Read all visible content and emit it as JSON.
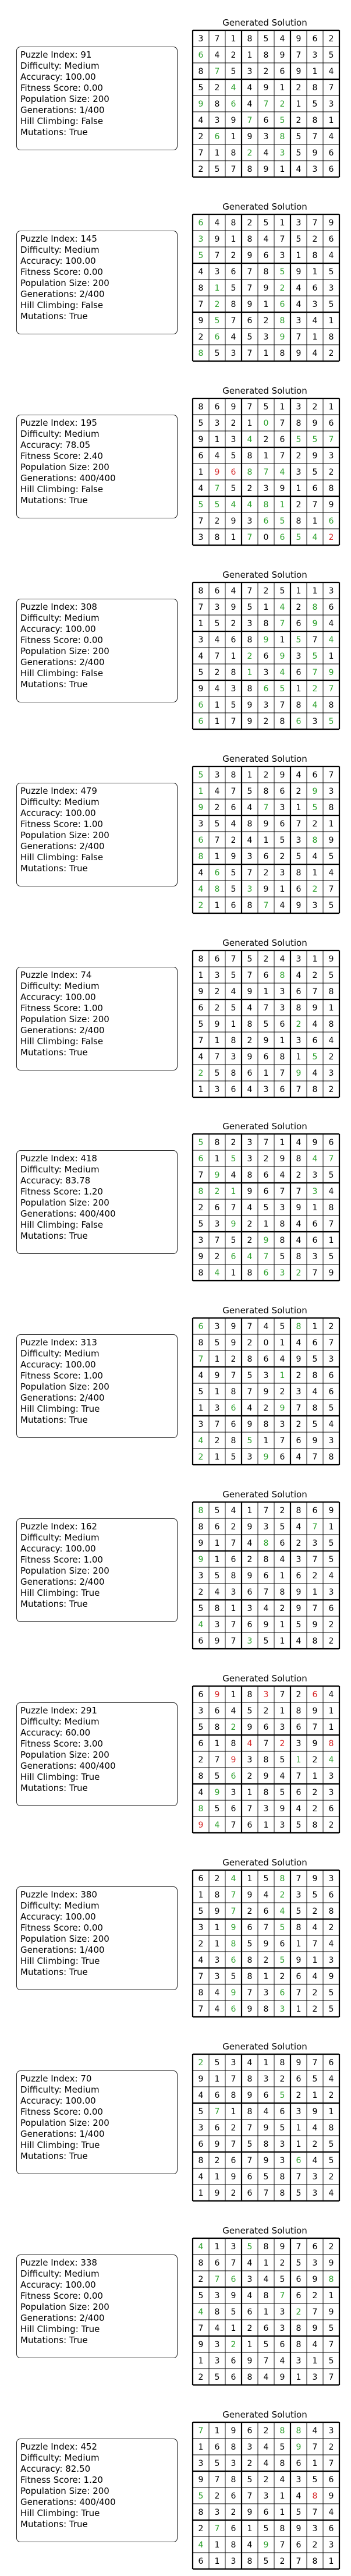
{
  "colors": {
    "fixed": "#000000",
    "correct": "#2ca02c",
    "wrong": "#d62728",
    "grid": "#000000"
  },
  "panels": [
    {
      "title": "Generated Solution",
      "info": [
        "Puzzle Index: 91",
        "Difficulty: Medium",
        "Accuracy: 100.00",
        "Fitness Score: 0.00",
        "Population Size: 200",
        "Generations: 1/400",
        "Hill Climbing: False",
        "Mutations: True"
      ],
      "grid": [
        "371854962",
        "642189735",
        "875326914",
        "524491287",
        "986472153",
        "439765281",
        "261938574",
        "718243596",
        "257891436"
      ],
      "colors": [
        "000000000",
        "C00000000",
        "0C0000000",
        "00C000000",
        "C0C0CC000",
        "000C0C000",
        "0C000C000",
        "000C0C000",
        "000000000"
      ]
    },
    {
      "title": "Generated Solution",
      "info": [
        "Puzzle Index: 145",
        "Difficulty: Medium",
        "Accuracy: 100.00",
        "Fitness Score: 0.00",
        "Population Size: 200",
        "Generations: 2/400",
        "Hill Climbing: False",
        "Mutations: True"
      ],
      "grid": [
        "648251379",
        "391847526",
        "572963184",
        "436785915",
        "815792463",
        "728916435",
        "957628341",
        "264539718",
        "853718942"
      ],
      "colors": [
        "C00000000",
        "C00000000",
        "C00000000",
        "00000C000",
        "0C000C000",
        "0C000C000",
        "0C000C000",
        "0C000C000",
        "C00000000"
      ]
    },
    {
      "title": "Generated Solution",
      "info": [
        "Puzzle Index: 195",
        "Difficulty: Medium",
        "Accuracy: 78.05",
        "Fitness Score: 2.40",
        "Population Size: 200",
        "Generations: 400/400",
        "Hill Climbing: False",
        "Mutations: True"
      ],
      "grid": [
        "869751321",
        "532107896",
        "913426557",
        "645817293",
        "196874352",
        "475239168",
        "554481279",
        "729365816",
        "381706542"
      ],
      "colors": [
        "000000000",
        "0000C0000",
        "000C00CCC",
        "000000000",
        "0WWCCC000",
        "0C0000000",
        "CCCCCC000",
        "0000CC00C",
        "000C0CCCW"
      ]
    },
    {
      "title": "Generated Solution",
      "info": [
        "Puzzle Index: 308",
        "Difficulty: Medium",
        "Accuracy: 100.00",
        "Fitness Score: 0.00",
        "Population Size: 200",
        "Generations: 2/400",
        "Hill Climbing: False",
        "Mutations: True"
      ],
      "grid": [
        "864725113",
        "739514286",
        "152387694",
        "346891574",
        "471269351",
        "528134679",
        "943865127",
        "615937848",
        "617928635"
      ],
      "colors": [
        "000000000",
        "00000C0C0",
        "00000C0C0",
        "0000C0C0C",
        "000C0C0C0",
        "000C0C0CC",
        "0000CC0CC",
        "C000000C0",
        "C00000C0C"
      ]
    },
    {
      "title": "Generated Solution",
      "info": [
        "Puzzle Index: 479",
        "Difficulty: Medium",
        "Accuracy: 100.00",
        "Fitness Score: 1.00",
        "Population Size: 200",
        "Generations: 2/400",
        "Hill Climbing: False",
        "Mutations: True"
      ],
      "grid": [
        "538129467",
        "147586293",
        "926473158",
        "354896721",
        "672415389",
        "819362545",
        "465723814",
        "485391627",
        "216874935"
      ],
      "colors": [
        "C00000000",
        "C000000C0",
        "C000C00C0",
        "000000000",
        "C000000C0",
        "C00000000",
        "0C0000000",
        "CC0C000C0",
        "C000C0000"
      ]
    },
    {
      "title": "Generated Solution",
      "info": [
        "Puzzle Index: 74",
        "Difficulty: Medium",
        "Accuracy: 100.00",
        "Fitness Score: 1.00",
        "Population Size: 200",
        "Generations: 2/400",
        "Hill Climbing: False",
        "Mutations: True"
      ],
      "grid": [
        "867524319",
        "135768425",
        "924913678",
        "625473891",
        "591856248",
        "718291364",
        "473968152",
        "258617943",
        "136436782"
      ],
      "colors": [
        "000000000",
        "00000C000",
        "000000000",
        "000000000",
        "000000C00",
        "000000000",
        "0000000C0",
        "C00000C00",
        "000000000"
      ]
    },
    {
      "title": "Generated Solution",
      "info": [
        "Puzzle Index: 418",
        "Difficulty: Medium",
        "Accuracy: 83.78",
        "Fitness Score: 1.20",
        "Population Size: 200",
        "Generations: 400/400",
        "Hill Climbing: False",
        "Mutations: True"
      ],
      "grid": [
        "582371496",
        "615329847",
        "794864235",
        "821967734",
        "267453918",
        "539218467",
        "375298461",
        "926475835",
        "841863279"
      ],
      "colors": [
        "C00000000",
        "C0C0000CC",
        "0C0000000",
        "CCC0000C0",
        "000000000",
        "00C000000",
        "0000C0000",
        "00CCC0000",
        "0C00CCC00"
      ]
    },
    {
      "title": "Generated Solution",
      "info": [
        "Puzzle Index: 313",
        "Difficulty: Medium",
        "Accuracy: 100.00",
        "Fitness Score: 1.00",
        "Population Size: 200",
        "Generations: 2/400",
        "Hill Climbing: True",
        "Mutations: True"
      ],
      "grid": [
        "639745812",
        "859201467",
        "712864953",
        "497531286",
        "518792346",
        "136429785",
        "376983254",
        "428517693",
        "215396478"
      ],
      "colors": [
        "C00000C00",
        "000000000",
        "C00000000",
        "00000C000",
        "000000000",
        "00C00C000",
        "000000000",
        "C00C00000",
        "C000C0000"
      ]
    },
    {
      "title": "Generated Solution",
      "info": [
        "Puzzle Index: 162",
        "Difficulty: Medium",
        "Accuracy: 100.00",
        "Fitness Score: 1.00",
        "Population Size: 200",
        "Generations: 2/400",
        "Hill Climbing: True",
        "Mutations: True"
      ],
      "grid": [
        "854172869",
        "862935471",
        "917486235",
        "916284375",
        "358961624",
        "243678913",
        "581342976",
        "437691592",
        "697351482"
      ],
      "colors": [
        "C00000000",
        "0000000C0",
        "0000C0000",
        "C00000000",
        "000000000",
        "000000000",
        "000000000",
        "C00000000",
        "000C00000"
      ]
    },
    {
      "title": "Generated Solution",
      "info": [
        "Puzzle Index: 291",
        "Difficulty: Medium",
        "Accuracy: 60.00",
        "Fitness Score: 3.00",
        "Population Size: 200",
        "Generations: 400/400",
        "Hill Climbing: True",
        "Mutations: True"
      ],
      "grid": [
        "691837264",
        "364521891",
        "582963671",
        "618472398",
        "279385124",
        "856294713",
        "493185623",
        "856739426",
        "947613582"
      ],
      "colors": [
        "0W00W00W0",
        "000000000",
        "00C000000",
        "000W0W00W",
        "00W000C0C",
        "00C000000",
        "0C0000000",
        "C00000000",
        "WC0000000"
      ]
    },
    {
      "title": "Generated Solution",
      "info": [
        "Puzzle Index: 380",
        "Difficulty: Medium",
        "Accuracy: 100.00",
        "Fitness Score: 0.00",
        "Population Size: 200",
        "Generations: 1/400",
        "Hill Climbing: True",
        "Mutations: True"
      ],
      "grid": [
        "624158793",
        "187942356",
        "597264528",
        "319675842",
        "218596174",
        "436825913",
        "735812649",
        "849736725",
        "746983125"
      ],
      "colors": [
        "00C00C000",
        "00C00C000",
        "00C00C000",
        "00C00C000",
        "00C000000",
        "00C00C000",
        "000000000",
        "00C00C000",
        "00C00C000"
      ]
    },
    {
      "title": "Generated Solution",
      "info": [
        "Puzzle Index: 70",
        "Difficulty: Medium",
        "Accuracy: 100.00",
        "Fitness Score: 0.00",
        "Population Size: 200",
        "Generations: 1/400",
        "Hill Climbing: True",
        "Mutations: True"
      ],
      "grid": [
        "253418976",
        "917832654",
        "468965212",
        "571846391",
        "362795148",
        "697583125",
        "826793645",
        "419658732",
        "192678534"
      ],
      "colors": [
        "C00000000",
        "000000000",
        "00000C000",
        "0C0000000",
        "000000000",
        "000000000",
        "000000C00",
        "000000000",
        "000000000"
      ]
    },
    {
      "title": "Generated Solution",
      "info": [
        "Puzzle Index: 338",
        "Difficulty: Medium",
        "Accuracy: 100.00",
        "Fitness Score: 0.00",
        "Population Size: 200",
        "Generations: 2/400",
        "Hill Climbing: True",
        "Mutations: True"
      ],
      "grid": [
        "413589762",
        "867412539",
        "276345698",
        "539487621",
        "485613279",
        "741263895",
        "932156847",
        "136974315",
        "256849137"
      ],
      "colors": [
        "C00C00000",
        "000000000",
        "0CC00000C",
        "00000C000",
        "C00000C00",
        "000000000",
        "00C000000",
        "000000000",
        "000000000"
      ]
    },
    {
      "title": "Generated Solution",
      "info": [
        "Puzzle Index: 452",
        "Difficulty: Medium",
        "Accuracy: 82.50",
        "Fitness Score: 1.20",
        "Population Size: 200",
        "Generations: 400/400",
        "Hill Climbing: True",
        "Mutations: True"
      ],
      "grid": [
        "719628843",
        "168345972",
        "353248617",
        "978524356",
        "526731489",
        "832961574",
        "276158936",
        "418497623",
        "613852781"
      ],
      "colors": [
        "C0000CC00",
        "000000C00",
        "000000000",
        "000000000",
        "C000000W0",
        "000000000",
        "0C0000000",
        "C000C0000",
        "000000000"
      ]
    }
  ]
}
